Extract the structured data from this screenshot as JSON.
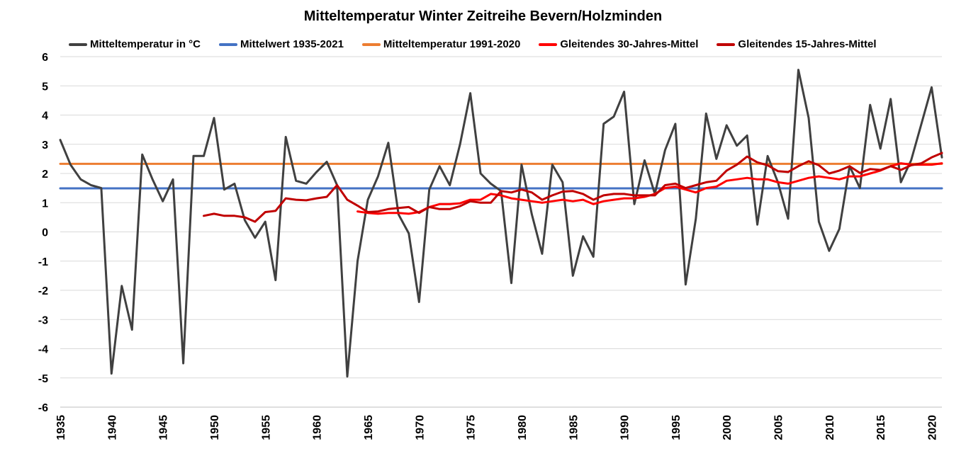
{
  "chart_data": {
    "type": "line",
    "title": "Mitteltemperatur Winter Zeitreihe Bevern/Holzminden",
    "xlabel": "",
    "ylabel": "",
    "xlim": [
      1935,
      2021
    ],
    "ylim": [
      -6,
      6
    ],
    "y_ticks": [
      6,
      5,
      4,
      3,
      2,
      1,
      0,
      -1,
      -2,
      -3,
      -4,
      -5,
      -6
    ],
    "x_ticks": [
      1935,
      1940,
      1945,
      1950,
      1955,
      1960,
      1965,
      1970,
      1975,
      1980,
      1985,
      1990,
      1995,
      2000,
      2005,
      2010,
      2015,
      2020
    ],
    "grid": "horizontal",
    "legend_position": "top",
    "series": [
      {
        "name": "Mitteltemperatur in °C",
        "color": "#404040",
        "x": [
          1935,
          1936,
          1937,
          1938,
          1939,
          1940,
          1941,
          1942,
          1943,
          1944,
          1945,
          1946,
          1947,
          1948,
          1949,
          1950,
          1951,
          1952,
          1953,
          1954,
          1955,
          1956,
          1957,
          1958,
          1959,
          1960,
          1961,
          1962,
          1963,
          1964,
          1965,
          1966,
          1967,
          1968,
          1969,
          1970,
          1971,
          1972,
          1973,
          1974,
          1975,
          1976,
          1977,
          1978,
          1979,
          1980,
          1981,
          1982,
          1983,
          1984,
          1985,
          1986,
          1987,
          1988,
          1989,
          1990,
          1991,
          1992,
          1993,
          1994,
          1995,
          1996,
          1997,
          1998,
          1999,
          2000,
          2001,
          2002,
          2003,
          2004,
          2005,
          2006,
          2007,
          2008,
          2009,
          2010,
          2011,
          2012,
          2013,
          2014,
          2015,
          2016,
          2017,
          2018,
          2019,
          2020,
          2021
        ],
        "values": [
          3.15,
          2.3,
          1.8,
          1.6,
          1.5,
          -4.85,
          -1.85,
          -3.35,
          2.65,
          1.8,
          1.05,
          1.8,
          -4.5,
          2.6,
          2.6,
          3.9,
          1.45,
          1.65,
          0.4,
          -0.2,
          0.35,
          -1.65,
          3.25,
          1.75,
          1.65,
          2.05,
          2.4,
          1.6,
          -4.95,
          -1.0,
          1.1,
          1.9,
          3.05,
          0.6,
          -0.05,
          -2.4,
          1.45,
          2.25,
          1.6,
          3.0,
          4.75,
          2.0,
          1.65,
          1.4,
          -1.75,
          2.3,
          0.6,
          -0.75,
          2.3,
          1.7,
          -1.5,
          -0.15,
          -0.85,
          3.7,
          3.95,
          4.8,
          0.95,
          2.45,
          1.3,
          2.8,
          3.7,
          -1.8,
          0.45,
          4.05,
          2.5,
          3.65,
          2.95,
          3.3,
          0.25,
          2.6,
          1.7,
          0.45,
          5.55,
          3.9,
          0.35,
          -0.65,
          0.1,
          2.25,
          1.5,
          4.35,
          2.85,
          4.55,
          1.7,
          2.45,
          3.7,
          4.95,
          2.55
        ]
      },
      {
        "name": "Mittelwert 1935-2021",
        "color": "#4472c4",
        "x": [
          1935,
          2021
        ],
        "values": [
          1.49,
          1.49
        ]
      },
      {
        "name": "Mitteltemperatur 1991-2020",
        "color": "#ed7d31",
        "x": [
          1935,
          2021
        ],
        "values": [
          2.33,
          2.33
        ]
      },
      {
        "name": "Gleitendes 30-Jahres-Mittel",
        "color": "#ff0000",
        "x": [
          1964,
          1965,
          1966,
          1967,
          1968,
          1969,
          1970,
          1971,
          1972,
          1973,
          1974,
          1975,
          1976,
          1977,
          1978,
          1979,
          1980,
          1981,
          1982,
          1983,
          1984,
          1985,
          1986,
          1987,
          1988,
          1989,
          1990,
          1991,
          1992,
          1993,
          1994,
          1995,
          1996,
          1997,
          1998,
          1999,
          2000,
          2001,
          2002,
          2003,
          2004,
          2005,
          2006,
          2007,
          2008,
          2009,
          2010,
          2011,
          2012,
          2013,
          2014,
          2015,
          2016,
          2017,
          2018,
          2019,
          2020,
          2021
        ],
        "values": [
          0.7,
          0.65,
          0.62,
          0.65,
          0.65,
          0.62,
          0.68,
          0.85,
          0.95,
          0.95,
          0.98,
          1.1,
          1.1,
          1.3,
          1.25,
          1.15,
          1.1,
          1.05,
          1.0,
          1.05,
          1.1,
          1.05,
          1.1,
          0.95,
          1.05,
          1.1,
          1.15,
          1.15,
          1.2,
          1.3,
          1.5,
          1.55,
          1.45,
          1.35,
          1.5,
          1.55,
          1.75,
          1.8,
          1.85,
          1.8,
          1.8,
          1.7,
          1.65,
          1.75,
          1.85,
          1.9,
          1.85,
          1.8,
          1.9,
          1.9,
          2.0,
          2.1,
          2.25,
          2.35,
          2.3,
          2.3,
          2.3,
          2.35
        ]
      },
      {
        "name": "Gleitendes 15-Jahres-Mittel",
        "color": "#c00000",
        "x": [
          1949,
          1950,
          1951,
          1952,
          1953,
          1954,
          1955,
          1956,
          1957,
          1958,
          1959,
          1960,
          1961,
          1962,
          1963,
          1964,
          1965,
          1966,
          1967,
          1968,
          1969,
          1970,
          1971,
          1972,
          1973,
          1974,
          1975,
          1976,
          1977,
          1978,
          1979,
          1980,
          1981,
          1982,
          1983,
          1984,
          1985,
          1986,
          1987,
          1988,
          1989,
          1990,
          1991,
          1992,
          1993,
          1994,
          1995,
          1996,
          1997,
          1998,
          1999,
          2000,
          2001,
          2002,
          2003,
          2004,
          2005,
          2006,
          2007,
          2008,
          2009,
          2010,
          2011,
          2012,
          2013,
          2014,
          2015,
          2016,
          2017,
          2018,
          2019,
          2020,
          2021
        ],
        "values": [
          0.55,
          0.62,
          0.55,
          0.55,
          0.5,
          0.35,
          0.68,
          0.72,
          1.15,
          1.1,
          1.08,
          1.15,
          1.2,
          1.6,
          1.1,
          0.9,
          0.68,
          0.7,
          0.78,
          0.82,
          0.85,
          0.65,
          0.85,
          0.78,
          0.78,
          0.88,
          1.05,
          1.0,
          1.0,
          1.4,
          1.35,
          1.45,
          1.35,
          1.1,
          1.25,
          1.38,
          1.4,
          1.3,
          1.1,
          1.25,
          1.3,
          1.3,
          1.25,
          1.25,
          1.25,
          1.6,
          1.65,
          1.5,
          1.6,
          1.7,
          1.75,
          2.1,
          2.3,
          2.58,
          2.38,
          2.28,
          2.08,
          2.05,
          2.25,
          2.42,
          2.28,
          2.0,
          2.1,
          2.25,
          2.02,
          2.15,
          2.12,
          2.25,
          2.12,
          2.28,
          2.35,
          2.55,
          2.7
        ]
      }
    ]
  }
}
